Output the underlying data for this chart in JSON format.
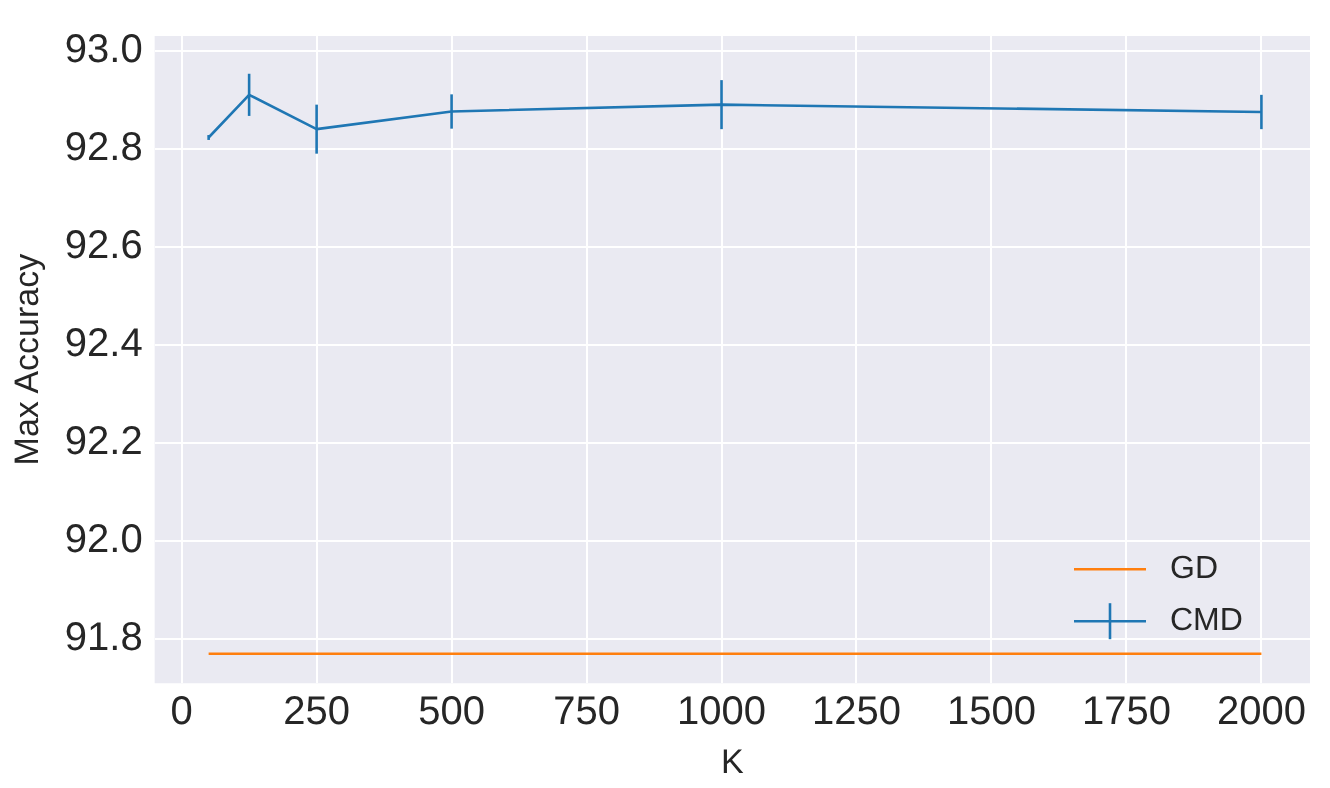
{
  "chart_data": {
    "type": "line",
    "xlabel": "K",
    "ylabel": "Max Accuracy",
    "xlim": [
      -50,
      2090
    ],
    "xticks": [
      0,
      250,
      500,
      750,
      1000,
      1250,
      1500,
      1750,
      2000
    ],
    "ylim": [
      91.71,
      93.03
    ],
    "yticks": [
      {
        "value": 91.8,
        "label": "91.8"
      },
      {
        "value": 92,
        "label": "92.0"
      },
      {
        "value": 92.2,
        "label": "92.2"
      },
      {
        "value": 92.4,
        "label": "92.4"
      },
      {
        "value": 92.6,
        "label": "92.6"
      },
      {
        "value": 92.8,
        "label": "92.8"
      },
      {
        "value": 93,
        "label": "93.0"
      }
    ],
    "grid": true,
    "legend": "bottom right",
    "marker": "none",
    "line_style": "solid",
    "series": [
      {
        "name": "GD",
        "color": "#ff7f0e",
        "x": [
          50,
          2000
        ],
        "values": [
          91.77,
          91.77
        ]
      },
      {
        "name": "CMD",
        "color": "#1f77b4",
        "x": [
          50,
          125,
          250,
          500,
          1000,
          2000
        ],
        "values": [
          92.823,
          92.91,
          92.84,
          92.876,
          92.89,
          92.875
        ],
        "errors": [
          0.005,
          0.043,
          0.05,
          0.035,
          0.05,
          0.035
        ]
      }
    ]
  }
}
